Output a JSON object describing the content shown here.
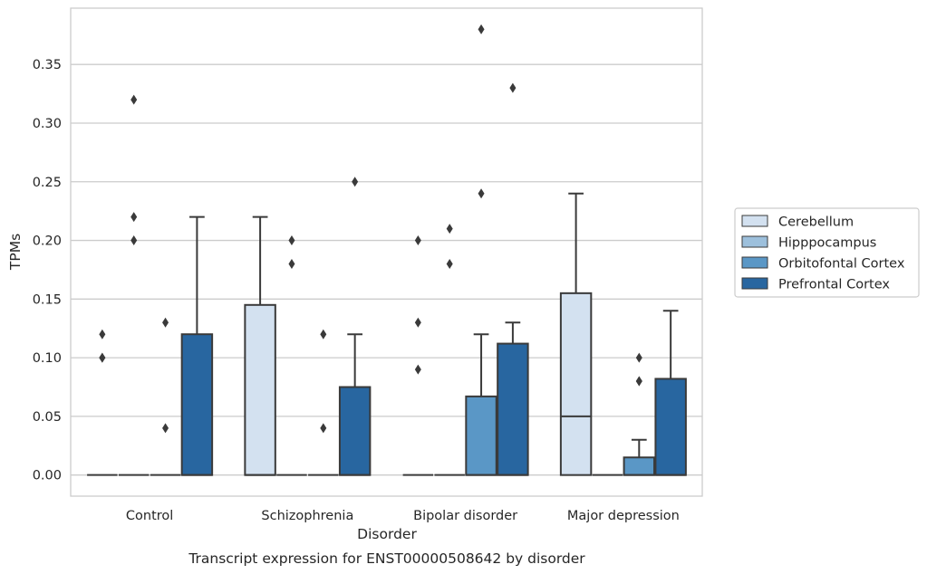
{
  "chart_data": {
    "type": "box",
    "title": "",
    "caption": "Transcript expression for ENST00000508642 by disorder",
    "xlabel": "Disorder",
    "ylabel": "TPMs",
    "ylim": [
      -0.018,
      0.398
    ],
    "yticks": [
      "0.00",
      "0.05",
      "0.10",
      "0.15",
      "0.20",
      "0.25",
      "0.30",
      "0.35"
    ],
    "grid": "horizontal",
    "legend_position": "right",
    "categories": [
      "Control",
      "Schizophrenia",
      "Bipolar disorder",
      "Major depression"
    ],
    "series": [
      {
        "name": "Cerebellum",
        "color": "#d3e1f0",
        "boxes": [
          {
            "q1": 0,
            "median": 0,
            "q3": 0,
            "whisker_low": 0,
            "whisker_high": 0,
            "outliers": [
              0.12,
              0.1,
              0.1
            ]
          },
          {
            "q1": 0,
            "median": 0,
            "q3": 0.145,
            "whisker_low": 0,
            "whisker_high": 0.22,
            "outliers": []
          },
          {
            "q1": 0,
            "median": 0,
            "q3": 0,
            "whisker_low": 0,
            "whisker_high": 0,
            "outliers": [
              0.2,
              0.13,
              0.09
            ]
          },
          {
            "q1": 0,
            "median": 0.05,
            "q3": 0.155,
            "whisker_low": 0,
            "whisker_high": 0.24,
            "outliers": []
          }
        ]
      },
      {
        "name": "Hipppocampus",
        "color": "#9dc0dc",
        "boxes": [
          {
            "q1": 0,
            "median": 0,
            "q3": 0,
            "whisker_low": 0,
            "whisker_high": 0,
            "outliers": [
              0.32,
              0.22,
              0.2
            ]
          },
          {
            "q1": 0,
            "median": 0,
            "q3": 0,
            "whisker_low": 0,
            "whisker_high": 0,
            "outliers": [
              0.2,
              0.18
            ]
          },
          {
            "q1": 0,
            "median": 0,
            "q3": 0,
            "whisker_low": 0,
            "whisker_high": 0,
            "outliers": [
              0.21,
              0.18
            ]
          },
          {
            "q1": 0,
            "median": 0,
            "q3": 0,
            "whisker_low": 0,
            "whisker_high": 0,
            "outliers": []
          }
        ]
      },
      {
        "name": "Orbitofontal Cortex",
        "color": "#5a97c6",
        "boxes": [
          {
            "q1": 0,
            "median": 0,
            "q3": 0,
            "whisker_low": 0,
            "whisker_high": 0,
            "outliers": [
              0.13,
              0.04
            ]
          },
          {
            "q1": 0,
            "median": 0,
            "q3": 0,
            "whisker_low": 0,
            "whisker_high": 0,
            "outliers": [
              0.12,
              0.04
            ]
          },
          {
            "q1": 0,
            "median": 0,
            "q3": 0.067,
            "whisker_low": 0,
            "whisker_high": 0.12,
            "outliers": [
              0.38,
              0.24
            ]
          },
          {
            "q1": 0,
            "median": 0,
            "q3": 0.015,
            "whisker_low": 0,
            "whisker_high": 0.03,
            "outliers": [
              0.1,
              0.08,
              0.08
            ]
          }
        ]
      },
      {
        "name": "Prefrontal Cortex",
        "color": "#2866a0",
        "boxes": [
          {
            "q1": 0,
            "median": 0,
            "q3": 0.12,
            "whisker_low": 0,
            "whisker_high": 0.22,
            "outliers": []
          },
          {
            "q1": 0,
            "median": 0,
            "q3": 0.075,
            "whisker_low": 0,
            "whisker_high": 0.12,
            "outliers": [
              0.25
            ]
          },
          {
            "q1": 0,
            "median": 0,
            "q3": 0.112,
            "whisker_low": 0,
            "whisker_high": 0.13,
            "outliers": [
              0.33
            ]
          },
          {
            "q1": 0,
            "median": 0,
            "q3": 0.082,
            "whisker_low": 0,
            "whisker_high": 0.14,
            "outliers": []
          }
        ]
      }
    ]
  }
}
